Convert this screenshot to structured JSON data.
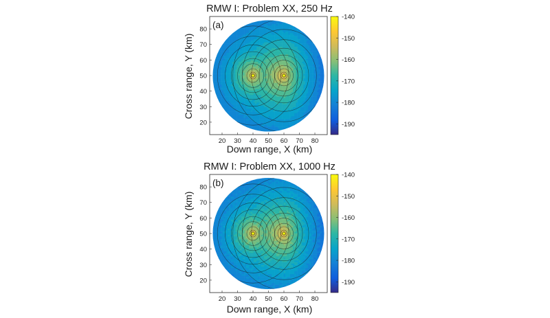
{
  "chart_data": [
    {
      "type": "heatmap",
      "panel_label": "(a)",
      "title": "RMW I: Problem XX, 250 Hz",
      "xlabel": "Down range, X (km)",
      "ylabel": "Cross range, Y (km)",
      "xlim": [
        12,
        88
      ],
      "ylim": [
        12,
        88
      ],
      "xticks": [
        20,
        30,
        40,
        50,
        60,
        70,
        80
      ],
      "yticks": [
        20,
        30,
        40,
        50,
        60,
        70,
        80
      ],
      "colorbar_ticks": [
        -140,
        -150,
        -160,
        -170,
        -180,
        -190
      ],
      "clim": [
        -195,
        -140
      ],
      "colormap": "parula",
      "sources": [
        {
          "x": 40,
          "y": 50
        },
        {
          "x": 60,
          "y": 50
        }
      ],
      "domain_circle": {
        "center": [
          50,
          50
        ],
        "radius": 38
      },
      "grid": false
    },
    {
      "type": "heatmap",
      "panel_label": "(b)",
      "title": "RMW I: Problem XX, 1000 Hz",
      "xlabel": "Down range, X (km)",
      "ylabel": "Cross range, Y (km)",
      "xlim": [
        12,
        88
      ],
      "ylim": [
        12,
        88
      ],
      "xticks": [
        20,
        30,
        40,
        50,
        60,
        70,
        80
      ],
      "yticks": [
        20,
        30,
        40,
        50,
        60,
        70,
        80
      ],
      "colorbar_ticks": [
        -140,
        -150,
        -160,
        -170,
        -180,
        -190
      ],
      "clim": [
        -195,
        -140
      ],
      "colormap": "parula",
      "sources": [
        {
          "x": 40,
          "y": 50
        },
        {
          "x": 60,
          "y": 50
        }
      ],
      "domain_circle": {
        "center": [
          50,
          50
        ],
        "radius": 38
      },
      "grid": false
    }
  ]
}
